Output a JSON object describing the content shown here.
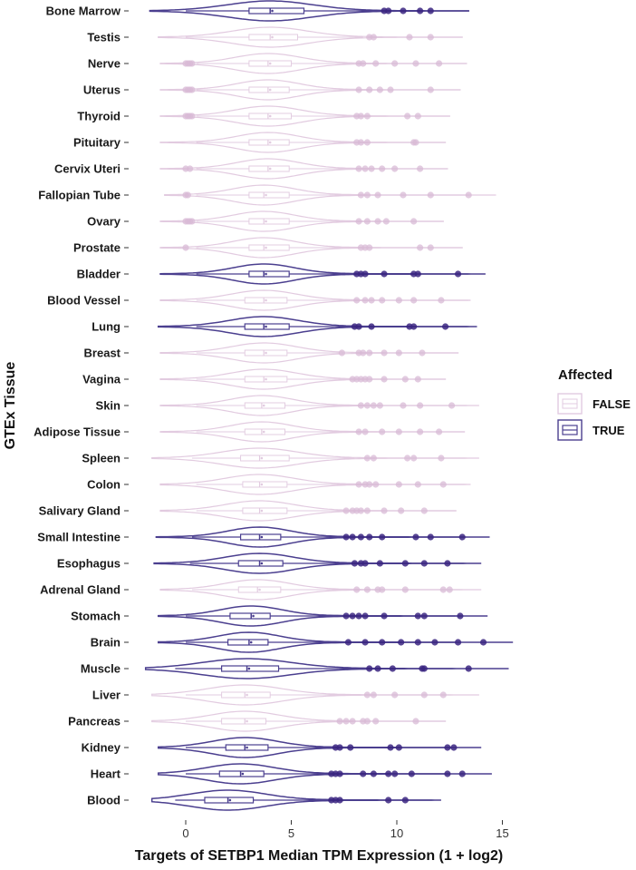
{
  "chart_data": {
    "type": "violin",
    "xlabel": "Targets of SETBP1 Median TPM Expression (1 + log2)",
    "ylabel": "GTEx Tissue",
    "xlim": [
      -2,
      15.8
    ],
    "xticks": [
      0,
      5,
      10,
      15
    ],
    "xtick_labels": [
      "0",
      "5",
      "10",
      "15"
    ],
    "legend": {
      "title": "Affected",
      "position": "right",
      "entries": [
        {
          "label": "FALSE",
          "color": "#e2cbe0"
        },
        {
          "label": "TRUE",
          "color": "#4b3f8f"
        }
      ]
    },
    "colors": {
      "FALSE": "#e2cbe0",
      "TRUE": "#4b3f8f",
      "FALSE_point": "#d8b9d5",
      "TRUE_point": "#3a2580"
    },
    "tissues": [
      {
        "name": "Bone Marrow",
        "affected": true,
        "min": -1.7,
        "max": 13.4,
        "q1": 3.0,
        "median": 4.0,
        "q3": 5.6,
        "mean": 4.1,
        "whisker_low": 0.0,
        "whisker_high": 9.3,
        "outliers": [
          9.4,
          9.6,
          10.3,
          11.1,
          11.6
        ]
      },
      {
        "name": "Testis",
        "affected": false,
        "min": -1.3,
        "max": 13.1,
        "q1": 3.0,
        "median": 4.0,
        "q3": 5.3,
        "mean": 4.1,
        "whisker_low": 0.0,
        "whisker_high": 8.4,
        "outliers": [
          8.7,
          8.9,
          10.6,
          11.6
        ]
      },
      {
        "name": "Nerve",
        "affected": false,
        "min": -1.2,
        "max": 13.3,
        "q1": 3.0,
        "median": 3.9,
        "q3": 5.0,
        "mean": 4.0,
        "whisker_low": 0.5,
        "whisker_high": 8.0,
        "outliers": [
          0.0,
          0.1,
          0.2,
          0.3,
          8.2,
          8.4,
          9.0,
          9.9,
          10.9,
          12.0
        ]
      },
      {
        "name": "Uterus",
        "affected": false,
        "min": -1.2,
        "max": 13.0,
        "q1": 3.0,
        "median": 3.9,
        "q3": 4.9,
        "mean": 4.0,
        "whisker_low": 0.5,
        "whisker_high": 8.0,
        "outliers": [
          0.0,
          0.1,
          0.2,
          0.3,
          8.2,
          8.7,
          9.2,
          9.7,
          11.6
        ]
      },
      {
        "name": "Thyroid",
        "affected": false,
        "min": -1.2,
        "max": 12.5,
        "q1": 3.0,
        "median": 3.9,
        "q3": 5.0,
        "mean": 4.0,
        "whisker_low": 0.5,
        "whisker_high": 8.0,
        "outliers": [
          0.0,
          0.1,
          0.2,
          0.3,
          8.1,
          8.3,
          8.6,
          10.5,
          11.0
        ]
      },
      {
        "name": "Pituitary",
        "affected": false,
        "min": -1.2,
        "max": 12.3,
        "q1": 3.0,
        "median": 3.9,
        "q3": 4.9,
        "mean": 4.0,
        "whisker_low": 0.5,
        "whisker_high": 8.0,
        "outliers": [
          8.1,
          8.3,
          8.6,
          10.8,
          10.9
        ]
      },
      {
        "name": "Cervix Uteri",
        "affected": false,
        "min": -1.2,
        "max": 12.4,
        "q1": 3.0,
        "median": 3.9,
        "q3": 4.9,
        "mean": 4.0,
        "whisker_low": 0.5,
        "whisker_high": 8.0,
        "outliers": [
          0.0,
          0.2,
          8.2,
          8.5,
          8.8,
          9.3,
          9.9,
          11.1
        ]
      },
      {
        "name": "Fallopian Tube",
        "affected": false,
        "min": -1.0,
        "max": 14.7,
        "q1": 3.0,
        "median": 3.7,
        "q3": 4.9,
        "mean": 3.8,
        "whisker_low": 0.5,
        "whisker_high": 8.0,
        "outliers": [
          0.0,
          0.1,
          8.3,
          8.6,
          9.1,
          10.3,
          11.6,
          13.4
        ]
      },
      {
        "name": "Ovary",
        "affected": false,
        "min": -1.2,
        "max": 12.2,
        "q1": 3.0,
        "median": 3.7,
        "q3": 4.9,
        "mean": 3.8,
        "whisker_low": 0.5,
        "whisker_high": 8.0,
        "outliers": [
          0.0,
          0.1,
          0.2,
          0.3,
          8.2,
          8.6,
          9.1,
          9.5,
          10.8
        ]
      },
      {
        "name": "Prostate",
        "affected": false,
        "min": -1.2,
        "max": 13.1,
        "q1": 3.0,
        "median": 3.7,
        "q3": 4.9,
        "mean": 3.8,
        "whisker_low": 0.5,
        "whisker_high": 8.0,
        "outliers": [
          0.0,
          8.3,
          8.5,
          8.7,
          11.1,
          11.6
        ]
      },
      {
        "name": "Bladder",
        "affected": true,
        "min": -1.2,
        "max": 14.2,
        "q1": 3.0,
        "median": 3.7,
        "q3": 4.9,
        "mean": 3.8,
        "whisker_low": 0.5,
        "whisker_high": 8.0,
        "outliers": [
          8.1,
          8.3,
          8.5,
          9.4,
          10.8,
          11.0,
          12.9
        ]
      },
      {
        "name": "Blood Vessel",
        "affected": false,
        "min": -1.2,
        "max": 13.5,
        "q1": 2.8,
        "median": 3.7,
        "q3": 4.8,
        "mean": 3.8,
        "whisker_low": 0.5,
        "whisker_high": 8.0,
        "outliers": [
          8.1,
          8.5,
          8.8,
          9.3,
          10.1,
          10.8,
          12.1
        ]
      },
      {
        "name": "Lung",
        "affected": true,
        "min": -1.3,
        "max": 13.8,
        "q1": 2.8,
        "median": 3.7,
        "q3": 4.9,
        "mean": 3.8,
        "whisker_low": 0.5,
        "whisker_high": 7.9,
        "outliers": [
          8.0,
          8.2,
          8.8,
          10.6,
          10.8,
          12.3
        ]
      },
      {
        "name": "Breast",
        "affected": false,
        "min": -1.2,
        "max": 12.9,
        "q1": 2.8,
        "median": 3.7,
        "q3": 4.8,
        "mean": 3.8,
        "whisker_low": 0.5,
        "whisker_high": 7.3,
        "outliers": [
          7.4,
          8.2,
          8.4,
          8.7,
          9.4,
          10.1,
          11.2
        ]
      },
      {
        "name": "Vagina",
        "affected": false,
        "min": -1.2,
        "max": 12.3,
        "q1": 2.8,
        "median": 3.7,
        "q3": 4.8,
        "mean": 3.8,
        "whisker_low": 0.5,
        "whisker_high": 7.8,
        "outliers": [
          7.9,
          8.1,
          8.3,
          8.5,
          8.7,
          9.4,
          10.4,
          11.0
        ]
      },
      {
        "name": "Skin",
        "affected": false,
        "min": -1.2,
        "max": 13.9,
        "q1": 2.8,
        "median": 3.6,
        "q3": 4.7,
        "mean": 3.7,
        "whisker_low": 0.5,
        "whisker_high": 8.0,
        "outliers": [
          8.3,
          8.6,
          8.9,
          9.2,
          10.3,
          11.1,
          12.6
        ]
      },
      {
        "name": "Adipose Tissue",
        "affected": false,
        "min": -1.2,
        "max": 13.2,
        "q1": 2.8,
        "median": 3.6,
        "q3": 4.7,
        "mean": 3.7,
        "whisker_low": 0.5,
        "whisker_high": 7.9,
        "outliers": [
          8.2,
          8.5,
          9.3,
          10.1,
          11.1,
          12.0
        ]
      },
      {
        "name": "Spleen",
        "affected": false,
        "min": -1.6,
        "max": 13.9,
        "q1": 2.6,
        "median": 3.5,
        "q3": 4.9,
        "mean": 3.6,
        "whisker_low": 0.3,
        "whisker_high": 8.0,
        "outliers": [
          8.6,
          8.9,
          10.5,
          10.8,
          12.1
        ]
      },
      {
        "name": "Colon",
        "affected": false,
        "min": -1.2,
        "max": 13.5,
        "q1": 2.7,
        "median": 3.5,
        "q3": 4.8,
        "mean": 3.6,
        "whisker_low": 0.5,
        "whisker_high": 8.0,
        "outliers": [
          8.2,
          8.5,
          8.7,
          9.0,
          10.1,
          11.0,
          12.2
        ]
      },
      {
        "name": "Salivary Gland",
        "affected": false,
        "min": -1.2,
        "max": 12.8,
        "q1": 2.7,
        "median": 3.5,
        "q3": 4.8,
        "mean": 3.6,
        "whisker_low": 0.5,
        "whisker_high": 7.5,
        "outliers": [
          7.6,
          7.9,
          8.1,
          8.3,
          8.6,
          9.4,
          10.2,
          11.3
        ]
      },
      {
        "name": "Small Intestine",
        "affected": true,
        "min": -1.4,
        "max": 14.4,
        "q1": 2.6,
        "median": 3.5,
        "q3": 4.5,
        "mean": 3.6,
        "whisker_low": 0.3,
        "whisker_high": 7.5,
        "outliers": [
          7.6,
          7.9,
          8.3,
          8.7,
          9.3,
          10.9,
          11.6,
          13.1
        ]
      },
      {
        "name": "Esophagus",
        "affected": true,
        "min": -1.5,
        "max": 14.0,
        "q1": 2.5,
        "median": 3.5,
        "q3": 4.6,
        "mean": 3.6,
        "whisker_low": 0.2,
        "whisker_high": 7.8,
        "outliers": [
          8.0,
          8.3,
          8.5,
          9.2,
          10.4,
          11.3,
          12.4
        ]
      },
      {
        "name": "Adrenal Gland",
        "affected": false,
        "min": -1.2,
        "max": 14.0,
        "q1": 2.5,
        "median": 3.4,
        "q3": 4.5,
        "mean": 3.5,
        "whisker_low": 0.3,
        "whisker_high": 7.9,
        "outliers": [
          8.1,
          8.6,
          9.1,
          9.3,
          10.4,
          12.2,
          12.5
        ]
      },
      {
        "name": "Stomach",
        "affected": true,
        "min": -1.3,
        "max": 14.3,
        "q1": 2.1,
        "median": 3.1,
        "q3": 4.0,
        "mean": 3.2,
        "whisker_low": 0.0,
        "whisker_high": 7.5,
        "outliers": [
          7.6,
          7.9,
          8.2,
          8.5,
          9.4,
          11.0,
          11.3,
          13.0
        ]
      },
      {
        "name": "Brain",
        "affected": true,
        "min": -1.3,
        "max": 15.5,
        "q1": 2.0,
        "median": 3.0,
        "q3": 3.9,
        "mean": 3.1,
        "whisker_low": 0.0,
        "whisker_high": 7.5,
        "outliers": [
          7.7,
          8.5,
          9.3,
          10.2,
          11.0,
          11.8,
          12.9,
          14.1
        ]
      },
      {
        "name": "Muscle",
        "affected": true,
        "min": -1.9,
        "max": 15.3,
        "q1": 1.7,
        "median": 2.9,
        "q3": 4.4,
        "mean": 3.0,
        "whisker_low": -0.5,
        "whisker_high": 8.5,
        "outliers": [
          8.7,
          9.1,
          9.8,
          11.2,
          11.3,
          13.4
        ]
      },
      {
        "name": "Liver",
        "affected": false,
        "min": -1.6,
        "max": 13.9,
        "q1": 1.7,
        "median": 2.8,
        "q3": 4.0,
        "mean": 2.9,
        "whisker_low": 0.0,
        "whisker_high": 8.4,
        "outliers": [
          8.6,
          8.9,
          9.9,
          11.3,
          12.2
        ]
      },
      {
        "name": "Pancreas",
        "affected": false,
        "min": -1.6,
        "max": 12.3,
        "q1": 1.7,
        "median": 2.8,
        "q3": 3.8,
        "mean": 2.9,
        "whisker_low": 0.0,
        "whisker_high": 7.1,
        "outliers": [
          7.3,
          7.6,
          7.9,
          8.4,
          8.6,
          9.0,
          10.9
        ]
      },
      {
        "name": "Kidney",
        "affected": true,
        "min": -1.3,
        "max": 14.0,
        "q1": 1.9,
        "median": 2.8,
        "q3": 3.9,
        "mean": 2.9,
        "whisker_low": 0.0,
        "whisker_high": 7.0,
        "outliers": [
          7.1,
          7.3,
          7.8,
          9.7,
          10.1,
          12.4,
          12.7
        ]
      },
      {
        "name": "Heart",
        "affected": true,
        "min": -1.3,
        "max": 14.5,
        "q1": 1.6,
        "median": 2.6,
        "q3": 3.7,
        "mean": 2.7,
        "whisker_low": 0.0,
        "whisker_high": 6.8,
        "outliers": [
          6.9,
          7.1,
          7.3,
          8.4,
          8.9,
          9.6,
          9.9,
          10.7,
          12.4,
          13.1
        ]
      },
      {
        "name": "Blood",
        "affected": true,
        "min": -1.6,
        "max": 12.1,
        "q1": 0.9,
        "median": 2.0,
        "q3": 3.2,
        "mean": 2.1,
        "whisker_low": -0.5,
        "whisker_high": 6.8,
        "outliers": [
          6.9,
          7.1,
          7.3,
          9.6,
          10.4
        ]
      }
    ]
  }
}
